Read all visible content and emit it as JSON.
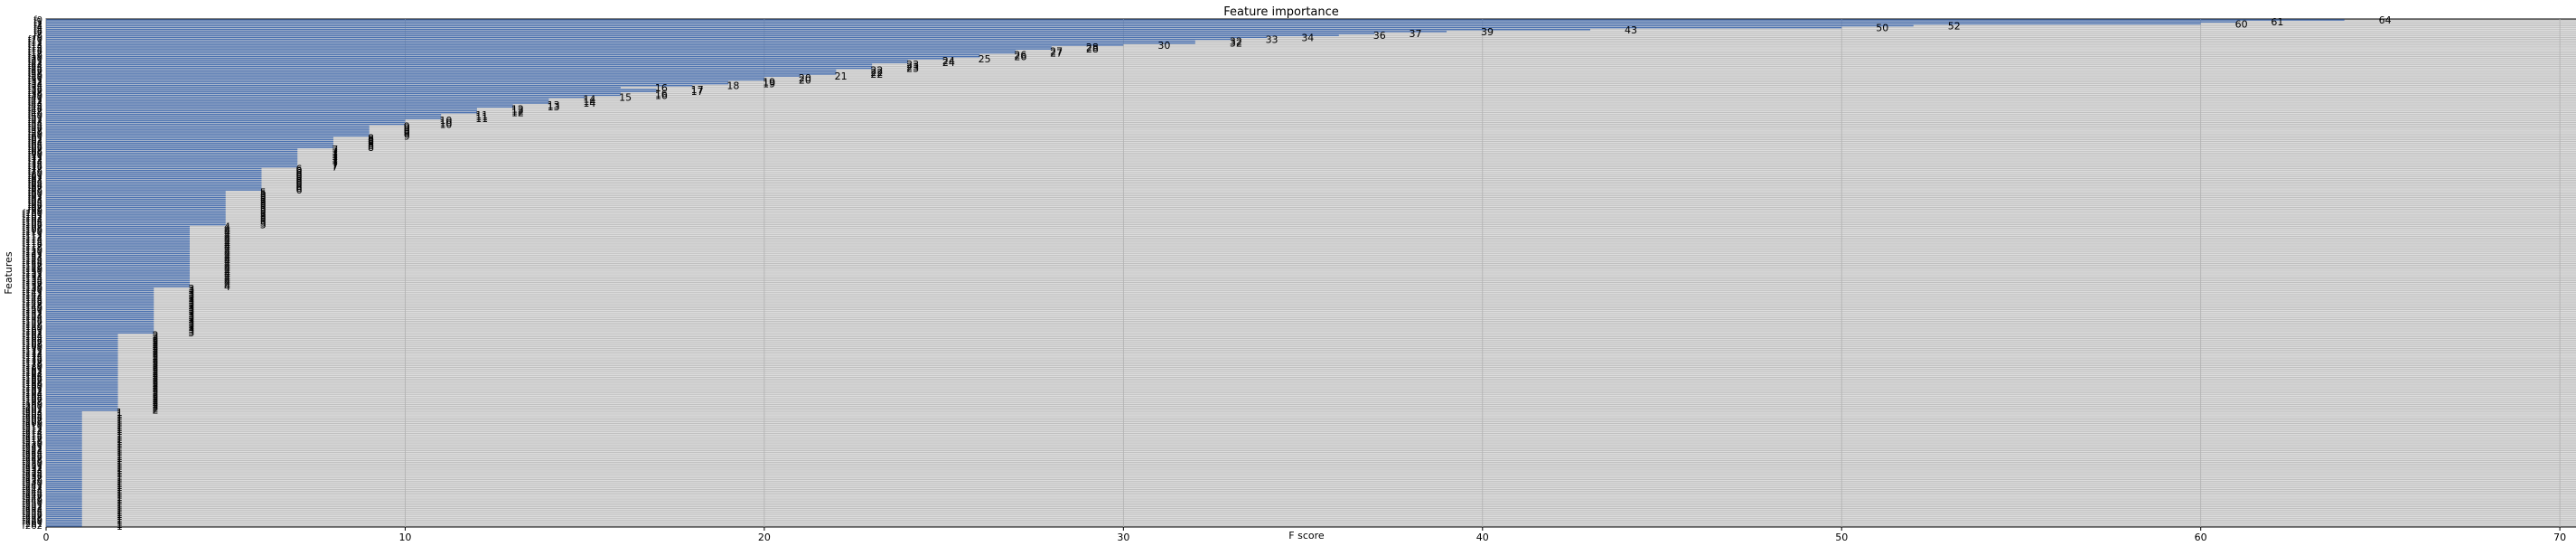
{
  "chart_data": {
    "type": "bar",
    "orientation": "horizontal",
    "title": "Feature importance",
    "xlabel": "F score",
    "ylabel": "Features",
    "xlim": [
      0,
      70.5
    ],
    "ylim": [
      -0.5,
      263.5
    ],
    "xticks": [
      0,
      10,
      20,
      30,
      40,
      50,
      60,
      70
    ],
    "grid": true,
    "bar_color": "#4c72b0",
    "plot_background": "#dcdcdc",
    "categories": [
      "f64",
      "f61",
      "f60",
      "f52",
      "f50",
      "f43",
      "f39",
      "f37",
      "f36",
      "f34",
      "f33",
      "f32",
      "f32b",
      "f30",
      "f28",
      "f28b",
      "f27",
      "f27b",
      "f26",
      "f26b",
      "f25",
      "f24",
      "f24b",
      "f23",
      "f23b",
      "f23c",
      "f22",
      "f22b",
      "f22c",
      "f21",
      "f20",
      "f20b",
      "f19",
      "f19b",
      "f18",
      "f16",
      "f17",
      "f17b",
      "f16b",
      "f16c",
      "f15",
      "f14",
      "f14b",
      "f14c",
      "f13",
      "f13b",
      "f12",
      "f12b",
      "f12c",
      "f11",
      "f11b",
      "f11c",
      "f10",
      "f10b",
      "f10c"
    ],
    "values": [
      64,
      61,
      60,
      52,
      50,
      43,
      39,
      37,
      36,
      34,
      33,
      32,
      32,
      30,
      28,
      28,
      27,
      27,
      26,
      26,
      25,
      24,
      24,
      23,
      23,
      23,
      22,
      22,
      22,
      21,
      20,
      20,
      19,
      19,
      18,
      16,
      17,
      17,
      16,
      16,
      15,
      14,
      14,
      14,
      13,
      13,
      12,
      12,
      12,
      11,
      11,
      11,
      10,
      10,
      10
    ],
    "value_groups": [
      {
        "value": 9,
        "count": 6
      },
      {
        "value": 8,
        "count": 6
      },
      {
        "value": 7,
        "count": 10
      },
      {
        "value": 6,
        "count": 12
      },
      {
        "value": 5,
        "count": 18
      },
      {
        "value": 4,
        "count": 32
      },
      {
        "value": 3,
        "count": 24
      },
      {
        "value": 2,
        "count": 40
      },
      {
        "value": 1,
        "count": 60
      }
    ]
  }
}
